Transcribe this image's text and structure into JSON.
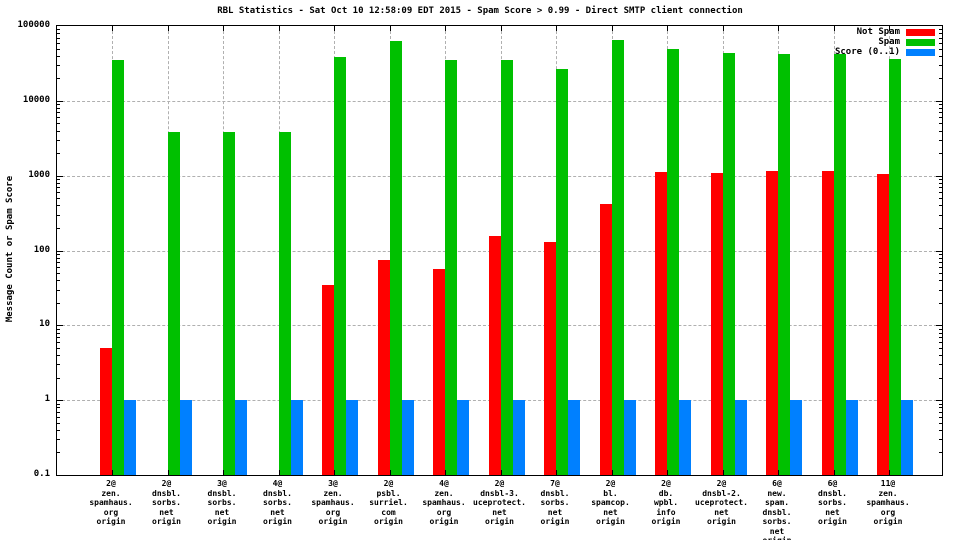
{
  "chart_data": {
    "type": "bar",
    "title": "RBL Statistics - Sat Oct 10 12:58:09 EDT 2015 - Spam Score > 0.99 - Direct SMTP client connection",
    "xlabel": "",
    "ylabel": "Message Count or Spam Score",
    "y_scale": "log",
    "ylim": [
      0.1,
      100000
    ],
    "ytick_labels": [
      "100000",
      "10000",
      "1000",
      "100",
      "10",
      "1",
      "0.1"
    ],
    "ytick_values": [
      100000,
      10000,
      1000,
      100,
      10,
      1,
      0.1
    ],
    "grid": true,
    "legend_position": "top-right-inside",
    "categories": [
      [
        "2@",
        "zen.",
        "spamhaus.",
        "org",
        "origin"
      ],
      [
        "2@",
        "dnsbl.",
        "sorbs.",
        "net",
        "origin"
      ],
      [
        "3@",
        "dnsbl.",
        "sorbs.",
        "net",
        "origin"
      ],
      [
        "4@",
        "dnsbl.",
        "sorbs.",
        "net",
        "origin"
      ],
      [
        "3@",
        "zen.",
        "spamhaus.",
        "org",
        "origin"
      ],
      [
        "2@",
        "psbl.",
        "surriel.",
        "com",
        "origin"
      ],
      [
        "4@",
        "zen.",
        "spamhaus.",
        "org",
        "origin"
      ],
      [
        "2@",
        "dnsbl-3.",
        "uceprotect.",
        "net",
        "origin"
      ],
      [
        "7@",
        "dnsbl.",
        "sorbs.",
        "net",
        "origin"
      ],
      [
        "2@",
        "bl.",
        "spamcop.",
        "net",
        "origin"
      ],
      [
        "2@",
        "db.",
        "wpbl.",
        "info",
        "origin"
      ],
      [
        "2@",
        "dnsbl-2.",
        "uceprotect.",
        "net",
        "origin"
      ],
      [
        "6@",
        "new.",
        "spam.",
        "dnsbl.",
        "sorbs.",
        "net",
        "origin"
      ],
      [
        "6@",
        "dnsbl.",
        "sorbs.",
        "net",
        "origin"
      ],
      [
        "11@",
        "zen.",
        "spamhaus.",
        "org",
        "origin"
      ]
    ],
    "series": [
      {
        "name": "Not Spam",
        "color": "#ff0000",
        "values": [
          5,
          0,
          0,
          0,
          35,
          75,
          56,
          155,
          130,
          420,
          1130,
          1100,
          1170,
          1170,
          1060
        ]
      },
      {
        "name": "Spam",
        "color": "#00c000",
        "values": [
          35000,
          3800,
          3800,
          3800,
          38000,
          63000,
          35000,
          35000,
          27000,
          65000,
          50000,
          44000,
          42000,
          42000,
          36000
        ]
      },
      {
        "name": "Score (0..1)",
        "color": "#0080ff",
        "values": [
          1,
          1,
          1,
          1,
          1,
          1,
          1,
          1,
          1,
          1,
          1,
          1,
          1,
          1,
          1
        ]
      }
    ]
  },
  "colors": {
    "frame": "#000000",
    "grid": "#b0b0b0",
    "background": "#ffffff"
  }
}
